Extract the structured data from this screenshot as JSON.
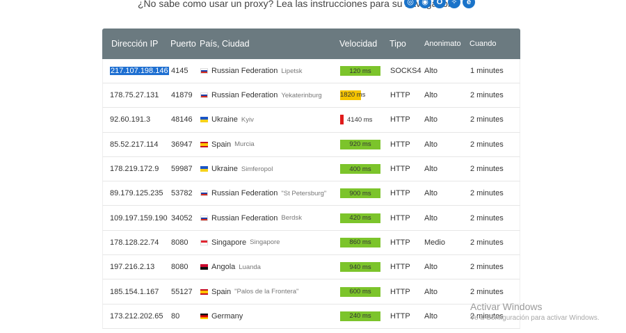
{
  "howto_text": "¿No sabe como usar un proxy? Lea las instrucciones para su navegador:",
  "browser_icons": [
    "safari-icon",
    "chrome-icon",
    "opera-icon",
    "firefox-icon",
    "ie-icon"
  ],
  "table": {
    "headers": {
      "ip": "Dirección IP",
      "port": "Puerto",
      "country": "País, Ciudad",
      "speed": "Velocidad",
      "type": "Tipo",
      "anon": "Anonimato",
      "when": "Cuando"
    },
    "rows": [
      {
        "ip": "217.107.198.146",
        "port": "4145",
        "flag": "ru",
        "country": "Russian Federation",
        "city": "Lipetsk",
        "speed": "120 ms",
        "speed_level": "green",
        "type": "SOCKS4",
        "anon": "Alto",
        "when": "1 minutes",
        "selected": true
      },
      {
        "ip": "178.75.27.131",
        "port": "41879",
        "flag": "ru",
        "country": "Russian Federation",
        "city": "Yekaterinburg",
        "speed": "1820 ms",
        "speed_level": "yellow",
        "type": "HTTP",
        "anon": "Alto",
        "when": "2 minutes"
      },
      {
        "ip": "92.60.191.3",
        "port": "48146",
        "flag": "ua",
        "country": "Ukraine",
        "city": "Kyiv",
        "speed": "4140 ms",
        "speed_level": "red",
        "type": "HTTP",
        "anon": "Alto",
        "when": "2 minutes"
      },
      {
        "ip": "85.52.217.114",
        "port": "36947",
        "flag": "es",
        "country": "Spain",
        "city": "Murcia",
        "speed": "920 ms",
        "speed_level": "green",
        "type": "HTTP",
        "anon": "Alto",
        "when": "2 minutes"
      },
      {
        "ip": "178.219.172.9",
        "port": "59987",
        "flag": "ua",
        "country": "Ukraine",
        "city": "Simferopol",
        "speed": "400 ms",
        "speed_level": "green",
        "type": "HTTP",
        "anon": "Alto",
        "when": "2 minutes"
      },
      {
        "ip": "89.179.125.235",
        "port": "53782",
        "flag": "ru",
        "country": "Russian Federation",
        "city": "\"St Petersburg\"",
        "speed": "900 ms",
        "speed_level": "green",
        "type": "HTTP",
        "anon": "Alto",
        "when": "2 minutes"
      },
      {
        "ip": "109.197.159.190",
        "port": "34052",
        "flag": "ru",
        "country": "Russian Federation",
        "city": "Berdsk",
        "speed": "420 ms",
        "speed_level": "green",
        "type": "HTTP",
        "anon": "Alto",
        "when": "2 minutes"
      },
      {
        "ip": "178.128.22.74",
        "port": "8080",
        "flag": "sg",
        "country": "Singapore",
        "city": "Singapore",
        "speed": "860 ms",
        "speed_level": "green",
        "type": "HTTP",
        "anon": "Medio",
        "when": "2 minutes"
      },
      {
        "ip": "197.216.2.13",
        "port": "8080",
        "flag": "ao",
        "country": "Angola",
        "city": "Luanda",
        "speed": "940 ms",
        "speed_level": "green",
        "type": "HTTP",
        "anon": "Alto",
        "when": "2 minutes"
      },
      {
        "ip": "185.154.1.167",
        "port": "55127",
        "flag": "es",
        "country": "Spain",
        "city": "\"Palos de la Frontera\"",
        "speed": "600 ms",
        "speed_level": "green",
        "type": "HTTP",
        "anon": "Alto",
        "when": "2 minutes"
      },
      {
        "ip": "173.212.202.65",
        "port": "80",
        "flag": "de",
        "country": "Germany",
        "city": "",
        "speed": "240 ms",
        "speed_level": "green",
        "type": "HTTP",
        "anon": "Alto",
        "when": "2 minutes"
      }
    ]
  },
  "watermark": {
    "title": "Activar Windows",
    "subtitle": "Ve a Configuración para activar Windows."
  },
  "colors": {
    "header_bg": "#6b7a80",
    "speed_green": "#7cc42b",
    "speed_yellow": "#f5c400",
    "speed_red": "#e01b1b",
    "selection": "#1e6fd1"
  }
}
